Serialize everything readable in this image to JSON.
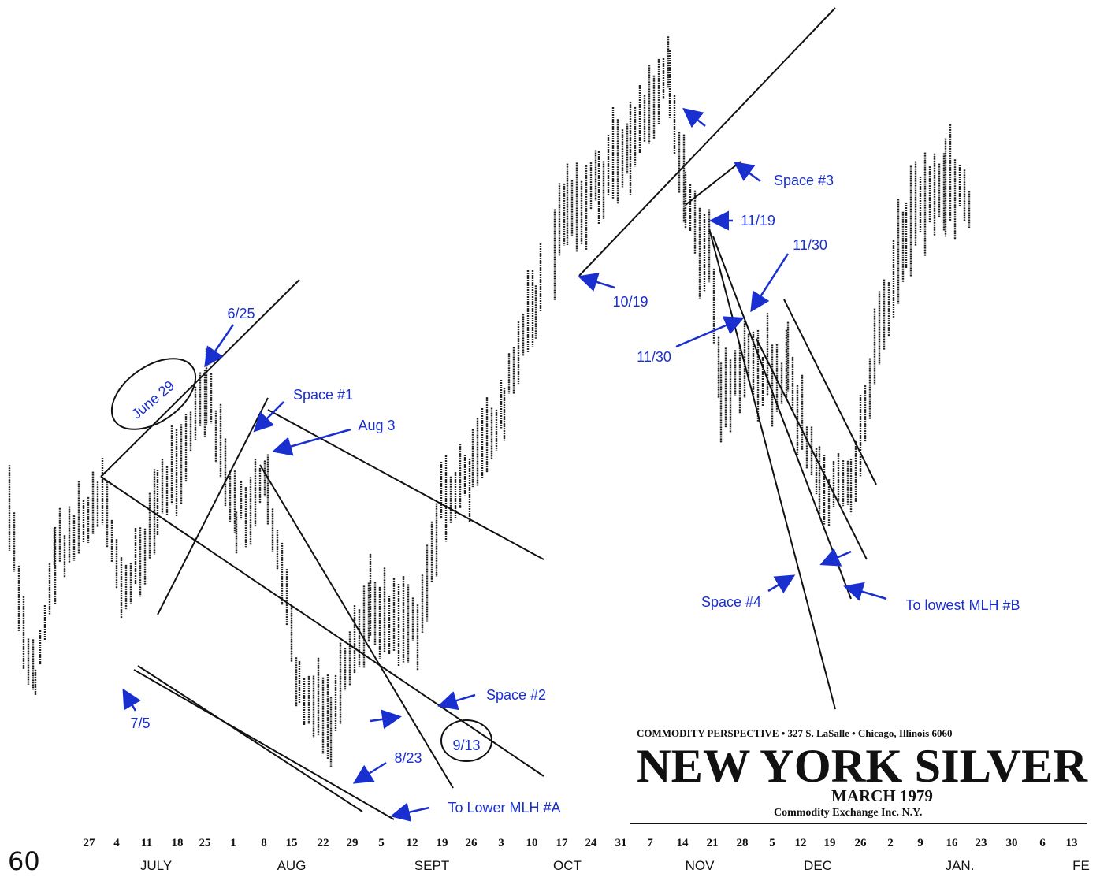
{
  "header": {
    "publisher": "COMMODITY PERSPECTIVE • 327 S. LaSalle • Chicago, Illinois 6060",
    "title": "NEW YORK SILVER",
    "contract": "MARCH 1979",
    "exchange": "Commodity Exchange Inc. N.Y."
  },
  "price_label": "60",
  "x_axis": {
    "days": [
      "27",
      "4",
      "11",
      "18",
      "25",
      "1",
      "8",
      "15",
      "22",
      "29",
      "5",
      "12",
      "19",
      "26",
      "3",
      "10",
      "17",
      "24",
      "31",
      "7",
      "14",
      "21",
      "28",
      "5",
      "12",
      "19",
      "26",
      "2",
      "9",
      "16",
      "23",
      "30",
      "6",
      "13"
    ],
    "months": [
      "JULY",
      "AUG",
      "SEPT",
      "OCT",
      "NOV",
      "DEC",
      "JAN.",
      "FE"
    ]
  },
  "annotations": [
    "6/25",
    "June 29",
    "Space #1",
    "Aug 3",
    "7/5",
    "Space #2",
    "9/13",
    "8/23",
    "To Lower MLH #A",
    "10/19",
    "Space #3",
    "11/19",
    "11/30",
    "11/30",
    "Space #4",
    "To lowest MLH #B"
  ]
}
